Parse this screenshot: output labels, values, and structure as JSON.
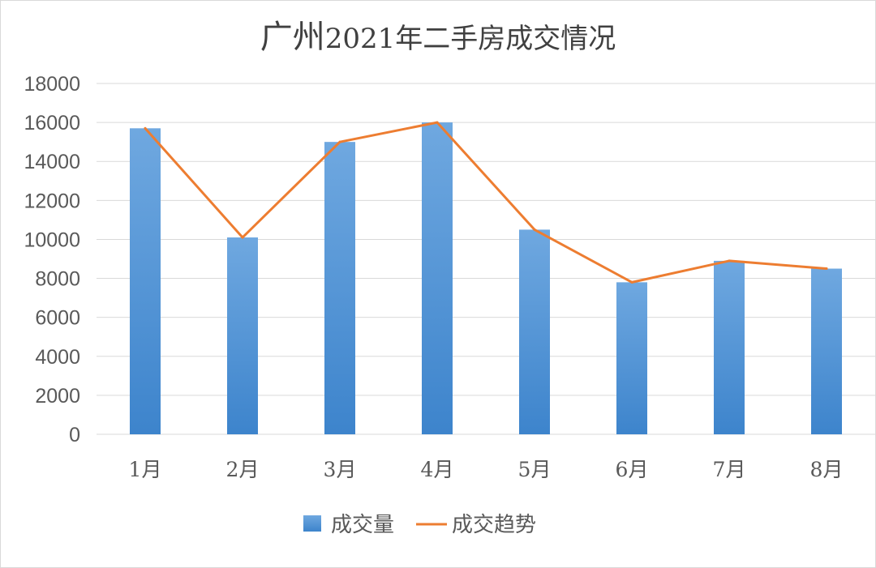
{
  "chart_data": {
    "type": "bar+line",
    "title": {
      "city": "广州",
      "rest": "2021年二手房成交情况"
    },
    "categories": [
      "1月",
      "2月",
      "3月",
      "4月",
      "5月",
      "6月",
      "7月",
      "8月"
    ],
    "series": [
      {
        "name": "成交量",
        "type": "bar",
        "color": "#4a90d9",
        "values": [
          15700,
          10100,
          15000,
          16000,
          10500,
          7800,
          8900,
          8500
        ]
      },
      {
        "name": "成交趋势",
        "type": "line",
        "color": "#ed7d31",
        "values": [
          15700,
          10100,
          15000,
          16000,
          10500,
          7800,
          8900,
          8500
        ]
      }
    ],
    "ylim": [
      0,
      18000
    ],
    "yticks": [
      "0",
      "2000",
      "4000",
      "6000",
      "8000",
      "10000",
      "12000",
      "14000",
      "16000",
      "18000"
    ],
    "grid": true,
    "legend_position": "bottom"
  }
}
